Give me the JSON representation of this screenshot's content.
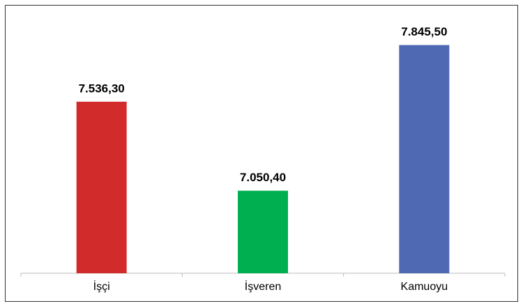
{
  "chart_data": {
    "type": "bar",
    "categories": [
      "İşçi",
      "İşveren",
      "Kamuoyu"
    ],
    "series": [
      {
        "values": [
          7536.3,
          7050.4,
          7845.5
        ],
        "value_labels": [
          "7.536,30",
          "7.050,40",
          "7.845,50"
        ],
        "colors": [
          "#d22b2b",
          "#00b050",
          "#4f6ab3"
        ]
      }
    ],
    "ylim": [
      6600,
      8000
    ]
  }
}
